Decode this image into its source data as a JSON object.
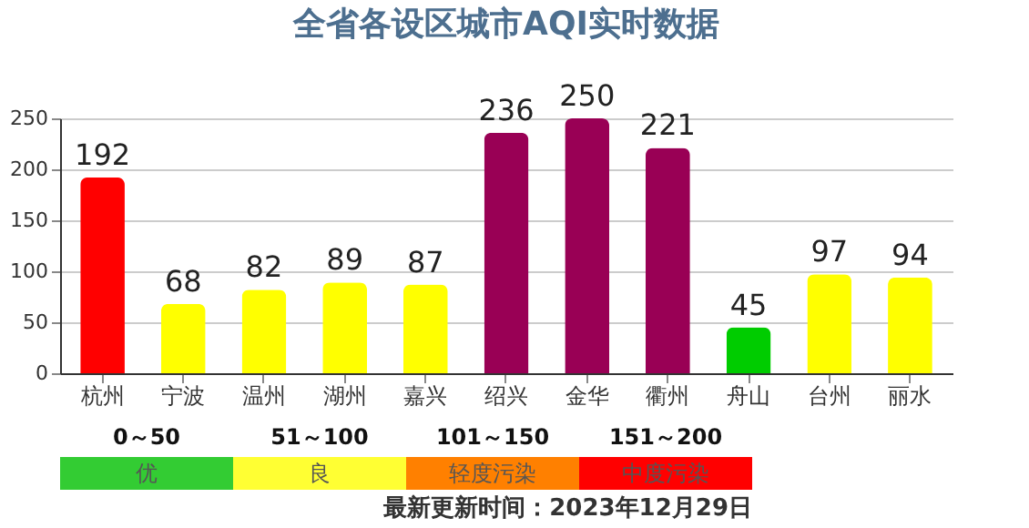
{
  "chart_data": [
    {
      "type": "bar",
      "title": "全省各设区城市AQI实时数据",
      "categories": [
        "杭州",
        "宁波",
        "温州",
        "湖州",
        "嘉兴",
        "绍兴",
        "金华",
        "衢州",
        "舟山",
        "台州",
        "丽水"
      ],
      "values": [
        192,
        68,
        82,
        89,
        87,
        236,
        250,
        221,
        45,
        97,
        94
      ],
      "colors": [
        "#ff0000",
        "#ffff00",
        "#ffff00",
        "#ffff00",
        "#ffff00",
        "#990055",
        "#990055",
        "#990055",
        "#00cc00",
        "#ffff00",
        "#ffff00"
      ],
      "ylim": [
        0,
        250
      ],
      "yticks": [
        0,
        50,
        100,
        150,
        200,
        250
      ],
      "grid": "y",
      "data_labels": true
    },
    {
      "type": "other",
      "categories": [
        "优",
        "良",
        "轻度污染",
        "中度污染"
      ],
      "colors": [
        "#33cc33",
        "#ffff33",
        "#ff8000",
        "#ff0000"
      ],
      "value_labels": [
        "0～50",
        "51～100",
        "101～150",
        "151～200"
      ],
      "annotations": [
        "最新更新时间：2023年12月29日"
      ]
    }
  ]
}
